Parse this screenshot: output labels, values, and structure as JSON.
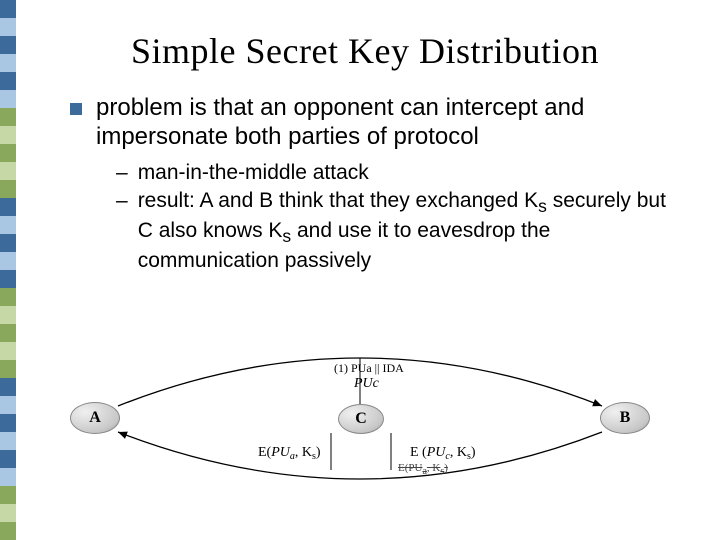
{
  "title": "Simple Secret Key Distribution",
  "bullet": "problem is that an opponent can intercept and impersonate both parties of protocol",
  "sub1": "man-in-the-middle attack",
  "sub2_a": "result: A and B think that they exchanged K",
  "sub2_b": " securely but C also knows K",
  "sub2_c": " and use it to eavesdrop the communication passively",
  "sub2_s": "s",
  "diagram": {
    "nodeA": "A",
    "nodeB": "B",
    "nodeC": "C",
    "top1": "(1) PUa || IDA",
    "top2": "PUc",
    "bl_pre": "E(",
    "bl_mid": "PU",
    "bl_a": "a",
    "bl_post": ", K",
    "bl_s": "s",
    "bl_close": ")",
    "br_pre": "E (",
    "br_mid": "PU",
    "br_c": "c",
    "br_post": ", K",
    "br_s": "s",
    "br_close": ")",
    "br2_pre": "E(PU",
    "br2_a": "a",
    "br2_post": ", K",
    "br2_s": "s",
    "br2_close": ")"
  },
  "stripe_colors": [
    "#3b6a9b",
    "#a9c6e2",
    "#3b6a9b",
    "#a9c6e2",
    "#3b6a9b",
    "#a9c6e2",
    "#89a85c",
    "#c5d8a6",
    "#89a85c",
    "#c5d8a6",
    "#89a85c",
    "#3b6a9b",
    "#a9c6e2",
    "#3b6a9b",
    "#a9c6e2",
    "#3b6a9b",
    "#89a85c",
    "#c5d8a6",
    "#89a85c",
    "#c5d8a6",
    "#89a85c",
    "#3b6a9b",
    "#a9c6e2",
    "#3b6a9b",
    "#a9c6e2",
    "#3b6a9b",
    "#a9c6e2",
    "#89a85c",
    "#c5d8a6",
    "#89a85c"
  ]
}
